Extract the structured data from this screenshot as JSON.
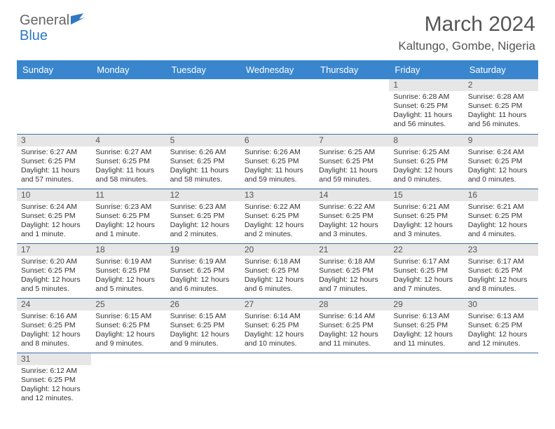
{
  "logo": {
    "part1": "General",
    "part2": "Blue"
  },
  "title": {
    "month": "March 2024",
    "location": "Kaltungo, Gombe, Nigeria"
  },
  "colors": {
    "header_bg": "#3a86ce",
    "daynum_bg": "#e6e6e6",
    "border": "#3a6ea5",
    "logo_blue": "#2f78c2",
    "text": "#333333"
  },
  "columns": [
    "Sunday",
    "Monday",
    "Tuesday",
    "Wednesday",
    "Thursday",
    "Friday",
    "Saturday"
  ],
  "weeks": [
    [
      null,
      null,
      null,
      null,
      null,
      {
        "n": "1",
        "sr": "Sunrise: 6:28 AM",
        "ss": "Sunset: 6:25 PM",
        "dl": "Daylight: 11 hours and 56 minutes."
      },
      {
        "n": "2",
        "sr": "Sunrise: 6:28 AM",
        "ss": "Sunset: 6:25 PM",
        "dl": "Daylight: 11 hours and 56 minutes."
      }
    ],
    [
      {
        "n": "3",
        "sr": "Sunrise: 6:27 AM",
        "ss": "Sunset: 6:25 PM",
        "dl": "Daylight: 11 hours and 57 minutes."
      },
      {
        "n": "4",
        "sr": "Sunrise: 6:27 AM",
        "ss": "Sunset: 6:25 PM",
        "dl": "Daylight: 11 hours and 58 minutes."
      },
      {
        "n": "5",
        "sr": "Sunrise: 6:26 AM",
        "ss": "Sunset: 6:25 PM",
        "dl": "Daylight: 11 hours and 58 minutes."
      },
      {
        "n": "6",
        "sr": "Sunrise: 6:26 AM",
        "ss": "Sunset: 6:25 PM",
        "dl": "Daylight: 11 hours and 59 minutes."
      },
      {
        "n": "7",
        "sr": "Sunrise: 6:25 AM",
        "ss": "Sunset: 6:25 PM",
        "dl": "Daylight: 11 hours and 59 minutes."
      },
      {
        "n": "8",
        "sr": "Sunrise: 6:25 AM",
        "ss": "Sunset: 6:25 PM",
        "dl": "Daylight: 12 hours and 0 minutes."
      },
      {
        "n": "9",
        "sr": "Sunrise: 6:24 AM",
        "ss": "Sunset: 6:25 PM",
        "dl": "Daylight: 12 hours and 0 minutes."
      }
    ],
    [
      {
        "n": "10",
        "sr": "Sunrise: 6:24 AM",
        "ss": "Sunset: 6:25 PM",
        "dl": "Daylight: 12 hours and 1 minute."
      },
      {
        "n": "11",
        "sr": "Sunrise: 6:23 AM",
        "ss": "Sunset: 6:25 PM",
        "dl": "Daylight: 12 hours and 1 minute."
      },
      {
        "n": "12",
        "sr": "Sunrise: 6:23 AM",
        "ss": "Sunset: 6:25 PM",
        "dl": "Daylight: 12 hours and 2 minutes."
      },
      {
        "n": "13",
        "sr": "Sunrise: 6:22 AM",
        "ss": "Sunset: 6:25 PM",
        "dl": "Daylight: 12 hours and 2 minutes."
      },
      {
        "n": "14",
        "sr": "Sunrise: 6:22 AM",
        "ss": "Sunset: 6:25 PM",
        "dl": "Daylight: 12 hours and 3 minutes."
      },
      {
        "n": "15",
        "sr": "Sunrise: 6:21 AM",
        "ss": "Sunset: 6:25 PM",
        "dl": "Daylight: 12 hours and 3 minutes."
      },
      {
        "n": "16",
        "sr": "Sunrise: 6:21 AM",
        "ss": "Sunset: 6:25 PM",
        "dl": "Daylight: 12 hours and 4 minutes."
      }
    ],
    [
      {
        "n": "17",
        "sr": "Sunrise: 6:20 AM",
        "ss": "Sunset: 6:25 PM",
        "dl": "Daylight: 12 hours and 5 minutes."
      },
      {
        "n": "18",
        "sr": "Sunrise: 6:19 AM",
        "ss": "Sunset: 6:25 PM",
        "dl": "Daylight: 12 hours and 5 minutes."
      },
      {
        "n": "19",
        "sr": "Sunrise: 6:19 AM",
        "ss": "Sunset: 6:25 PM",
        "dl": "Daylight: 12 hours and 6 minutes."
      },
      {
        "n": "20",
        "sr": "Sunrise: 6:18 AM",
        "ss": "Sunset: 6:25 PM",
        "dl": "Daylight: 12 hours and 6 minutes."
      },
      {
        "n": "21",
        "sr": "Sunrise: 6:18 AM",
        "ss": "Sunset: 6:25 PM",
        "dl": "Daylight: 12 hours and 7 minutes."
      },
      {
        "n": "22",
        "sr": "Sunrise: 6:17 AM",
        "ss": "Sunset: 6:25 PM",
        "dl": "Daylight: 12 hours and 7 minutes."
      },
      {
        "n": "23",
        "sr": "Sunrise: 6:17 AM",
        "ss": "Sunset: 6:25 PM",
        "dl": "Daylight: 12 hours and 8 minutes."
      }
    ],
    [
      {
        "n": "24",
        "sr": "Sunrise: 6:16 AM",
        "ss": "Sunset: 6:25 PM",
        "dl": "Daylight: 12 hours and 8 minutes."
      },
      {
        "n": "25",
        "sr": "Sunrise: 6:15 AM",
        "ss": "Sunset: 6:25 PM",
        "dl": "Daylight: 12 hours and 9 minutes."
      },
      {
        "n": "26",
        "sr": "Sunrise: 6:15 AM",
        "ss": "Sunset: 6:25 PM",
        "dl": "Daylight: 12 hours and 9 minutes."
      },
      {
        "n": "27",
        "sr": "Sunrise: 6:14 AM",
        "ss": "Sunset: 6:25 PM",
        "dl": "Daylight: 12 hours and 10 minutes."
      },
      {
        "n": "28",
        "sr": "Sunrise: 6:14 AM",
        "ss": "Sunset: 6:25 PM",
        "dl": "Daylight: 12 hours and 11 minutes."
      },
      {
        "n": "29",
        "sr": "Sunrise: 6:13 AM",
        "ss": "Sunset: 6:25 PM",
        "dl": "Daylight: 12 hours and 11 minutes."
      },
      {
        "n": "30",
        "sr": "Sunrise: 6:13 AM",
        "ss": "Sunset: 6:25 PM",
        "dl": "Daylight: 12 hours and 12 minutes."
      }
    ],
    [
      {
        "n": "31",
        "sr": "Sunrise: 6:12 AM",
        "ss": "Sunset: 6:25 PM",
        "dl": "Daylight: 12 hours and 12 minutes."
      },
      null,
      null,
      null,
      null,
      null,
      null
    ]
  ]
}
